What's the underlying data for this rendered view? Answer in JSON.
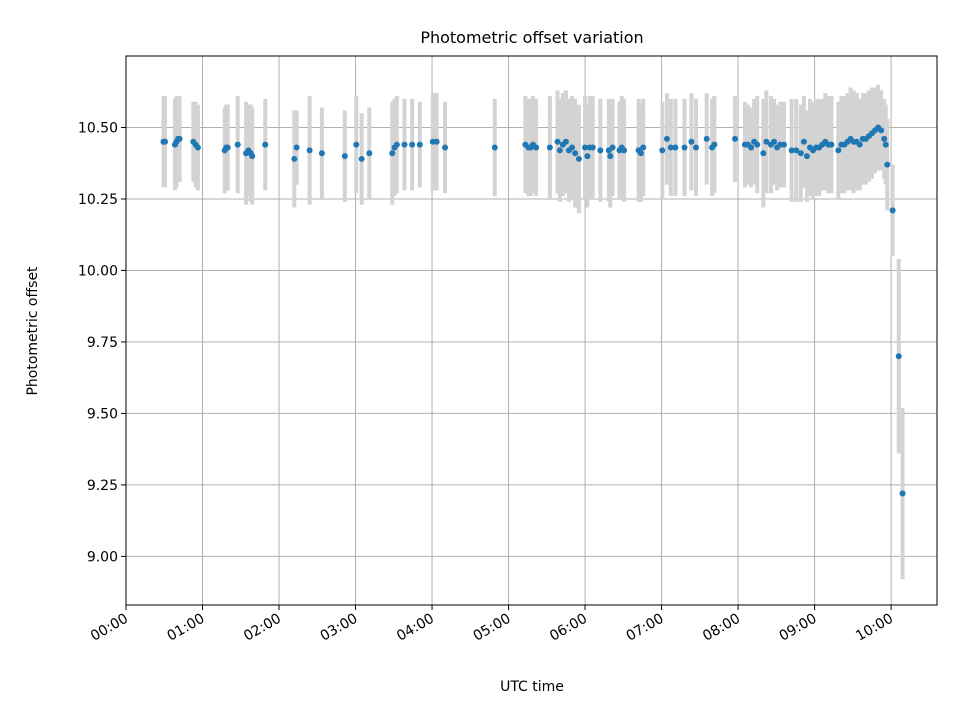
{
  "chart_data": {
    "type": "scatter",
    "title": "Photometric offset variation",
    "xlabel": "UTC time",
    "ylabel": "Photometric offset",
    "x_unit": "hours UTC",
    "xlim": [
      0.0,
      10.6
    ],
    "ylim": [
      8.83,
      10.75
    ],
    "grid": true,
    "x_ticks": [
      {
        "value": 0,
        "label": "00:00"
      },
      {
        "value": 1,
        "label": "01:00"
      },
      {
        "value": 2,
        "label": "02:00"
      },
      {
        "value": 3,
        "label": "03:00"
      },
      {
        "value": 4,
        "label": "04:00"
      },
      {
        "value": 5,
        "label": "05:00"
      },
      {
        "value": 6,
        "label": "06:00"
      },
      {
        "value": 7,
        "label": "07:00"
      },
      {
        "value": 8,
        "label": "08:00"
      },
      {
        "value": 9,
        "label": "09:00"
      },
      {
        "value": 10,
        "label": "10:00"
      }
    ],
    "y_ticks": [
      {
        "value": 9.0,
        "label": "9.00"
      },
      {
        "value": 9.25,
        "label": "9.25"
      },
      {
        "value": 9.5,
        "label": "9.50"
      },
      {
        "value": 9.75,
        "label": "9.75"
      },
      {
        "value": 10.0,
        "label": "10.00"
      },
      {
        "value": 10.25,
        "label": "10.25"
      },
      {
        "value": 10.5,
        "label": "10.50"
      }
    ],
    "colors": {
      "point": "#1f77b4",
      "errorbar": "#d3d3d3",
      "grid": "#b0b0b0"
    },
    "series": [
      {
        "x": [
          0.49,
          0.51,
          0.64,
          0.66,
          0.68,
          0.7,
          0.88,
          0.91,
          0.94,
          1.29,
          1.31,
          1.33,
          1.46,
          1.57,
          1.6,
          1.63,
          1.65,
          1.82,
          2.2,
          2.23,
          2.4,
          2.56,
          2.86,
          3.01,
          3.08,
          3.18,
          3.48,
          3.51,
          3.54,
          3.64,
          3.74,
          3.84,
          4.01,
          4.06,
          4.17,
          4.82,
          5.22,
          5.26,
          5.29,
          5.32,
          5.36,
          5.54,
          5.64,
          5.67,
          5.71,
          5.75,
          5.79,
          5.83,
          5.87,
          5.92,
          6.0,
          6.03,
          6.06,
          6.1,
          6.2,
          6.31,
          6.33,
          6.36,
          6.45,
          6.48,
          6.51,
          6.7,
          6.73,
          6.76,
          7.01,
          7.07,
          7.12,
          7.18,
          7.3,
          7.39,
          7.45,
          7.59,
          7.66,
          7.69,
          7.96,
          8.09,
          8.13,
          8.17,
          8.21,
          8.25,
          8.33,
          8.37,
          8.43,
          8.47,
          8.51,
          8.55,
          8.6,
          8.7,
          8.76,
          8.82,
          8.86,
          8.9,
          8.94,
          8.98,
          9.02,
          9.06,
          9.1,
          9.14,
          9.18,
          9.22,
          9.31,
          9.35,
          9.39,
          9.43,
          9.47,
          9.51,
          9.55,
          9.59,
          9.63,
          9.67,
          9.71,
          9.75,
          9.79,
          9.83,
          9.87,
          9.91,
          9.93,
          9.95,
          10.02,
          10.1,
          10.15
        ],
        "y": [
          10.45,
          10.45,
          10.44,
          10.45,
          10.46,
          10.46,
          10.45,
          10.44,
          10.43,
          10.42,
          10.43,
          10.43,
          10.44,
          10.41,
          10.42,
          10.41,
          10.4,
          10.44,
          10.39,
          10.43,
          10.42,
          10.41,
          10.4,
          10.44,
          10.39,
          10.41,
          10.41,
          10.43,
          10.44,
          10.44,
          10.44,
          10.44,
          10.45,
          10.45,
          10.43,
          10.43,
          10.44,
          10.43,
          10.43,
          10.44,
          10.43,
          10.43,
          10.45,
          10.42,
          10.44,
          10.45,
          10.42,
          10.43,
          10.41,
          10.39,
          10.43,
          10.4,
          10.43,
          10.43,
          10.42,
          10.42,
          10.4,
          10.43,
          10.42,
          10.43,
          10.42,
          10.42,
          10.41,
          10.43,
          10.42,
          10.46,
          10.43,
          10.43,
          10.43,
          10.45,
          10.43,
          10.46,
          10.43,
          10.44,
          10.46,
          10.44,
          10.44,
          10.43,
          10.45,
          10.44,
          10.41,
          10.45,
          10.44,
          10.45,
          10.43,
          10.44,
          10.44,
          10.42,
          10.42,
          10.41,
          10.45,
          10.4,
          10.43,
          10.42,
          10.43,
          10.43,
          10.44,
          10.45,
          10.44,
          10.44,
          10.42,
          10.44,
          10.44,
          10.45,
          10.46,
          10.45,
          10.45,
          10.44,
          10.46,
          10.46,
          10.47,
          10.48,
          10.49,
          10.5,
          10.49,
          10.46,
          10.44,
          10.37,
          10.21,
          9.7,
          9.22
        ],
        "err": [
          0.16,
          0.16,
          0.16,
          0.16,
          0.15,
          0.15,
          0.14,
          0.15,
          0.15,
          0.15,
          0.15,
          0.15,
          0.17,
          0.18,
          0.16,
          0.17,
          0.17,
          0.16,
          0.17,
          0.13,
          0.19,
          0.16,
          0.16,
          0.17,
          0.16,
          0.16,
          0.18,
          0.17,
          0.17,
          0.16,
          0.16,
          0.15,
          0.17,
          0.17,
          0.16,
          0.17,
          0.17,
          0.17,
          0.17,
          0.17,
          0.17,
          0.18,
          0.18,
          0.18,
          0.18,
          0.18,
          0.18,
          0.18,
          0.19,
          0.19,
          0.18,
          0.18,
          0.18,
          0.18,
          0.18,
          0.18,
          0.18,
          0.17,
          0.17,
          0.18,
          0.18,
          0.18,
          0.17,
          0.17,
          0.17,
          0.16,
          0.17,
          0.17,
          0.17,
          0.17,
          0.17,
          0.16,
          0.17,
          0.17,
          0.15,
          0.15,
          0.14,
          0.14,
          0.15,
          0.17,
          0.19,
          0.18,
          0.17,
          0.15,
          0.15,
          0.15,
          0.15,
          0.18,
          0.18,
          0.17,
          0.16,
          0.16,
          0.17,
          0.17,
          0.17,
          0.17,
          0.16,
          0.17,
          0.17,
          0.17,
          0.17,
          0.17,
          0.17,
          0.17,
          0.18,
          0.18,
          0.17,
          0.16,
          0.16,
          0.16,
          0.16,
          0.16,
          0.15,
          0.15,
          0.14,
          0.14,
          0.14,
          0.16,
          0.16,
          0.34,
          0.3
        ]
      }
    ]
  }
}
